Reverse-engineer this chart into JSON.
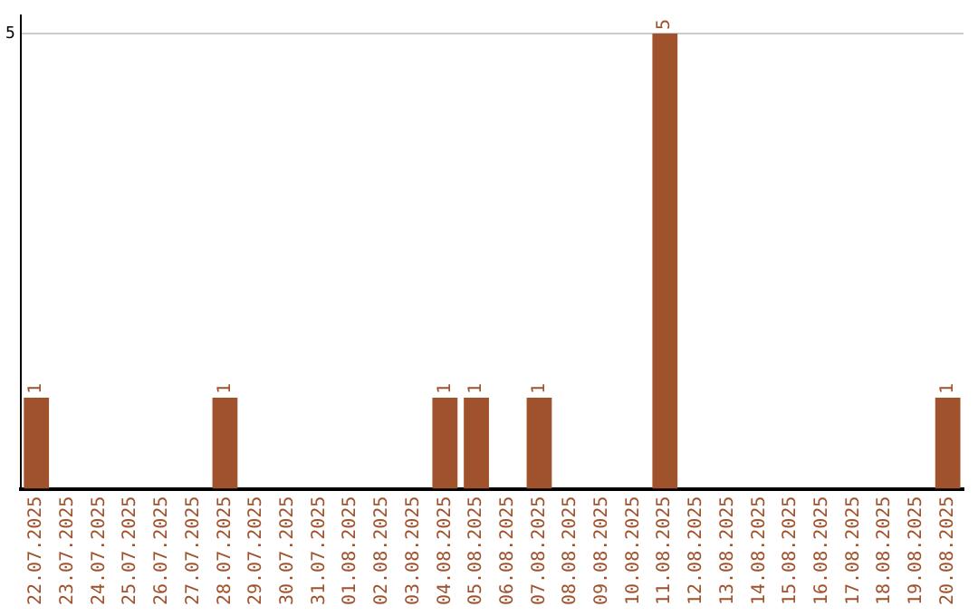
{
  "chart_data": {
    "type": "bar",
    "categories": [
      "22.07.2025",
      "23.07.2025",
      "24.07.2025",
      "25.07.2025",
      "26.07.2025",
      "27.07.2025",
      "28.07.2025",
      "29.07.2025",
      "30.07.2025",
      "31.07.2025",
      "01.08.2025",
      "02.08.2025",
      "03.08.2025",
      "04.08.2025",
      "05.08.2025",
      "06.08.2025",
      "07.08.2025",
      "08.08.2025",
      "09.08.2025",
      "10.08.2025",
      "11.08.2025",
      "12.08.2025",
      "13.08.2025",
      "14.08.2025",
      "15.08.2025",
      "16.08.2025",
      "17.08.2025",
      "18.08.2025",
      "19.08.2025",
      "20.08.2025"
    ],
    "values": [
      1,
      0,
      0,
      0,
      0,
      0,
      1,
      0,
      0,
      0,
      0,
      0,
      0,
      1,
      1,
      0,
      1,
      0,
      0,
      0,
      5,
      0,
      0,
      0,
      0,
      0,
      0,
      0,
      0,
      1
    ],
    "value_labels": [
      "1",
      null,
      null,
      null,
      null,
      null,
      "1",
      null,
      null,
      null,
      null,
      null,
      null,
      "1",
      "1",
      null,
      "1",
      null,
      null,
      null,
      "5",
      null,
      null,
      null,
      null,
      null,
      null,
      null,
      null,
      "1"
    ],
    "color": "#a0522d",
    "ylim": [
      0,
      5.2
    ],
    "yticks": [
      5
    ],
    "grid": "y",
    "legend": false
  }
}
